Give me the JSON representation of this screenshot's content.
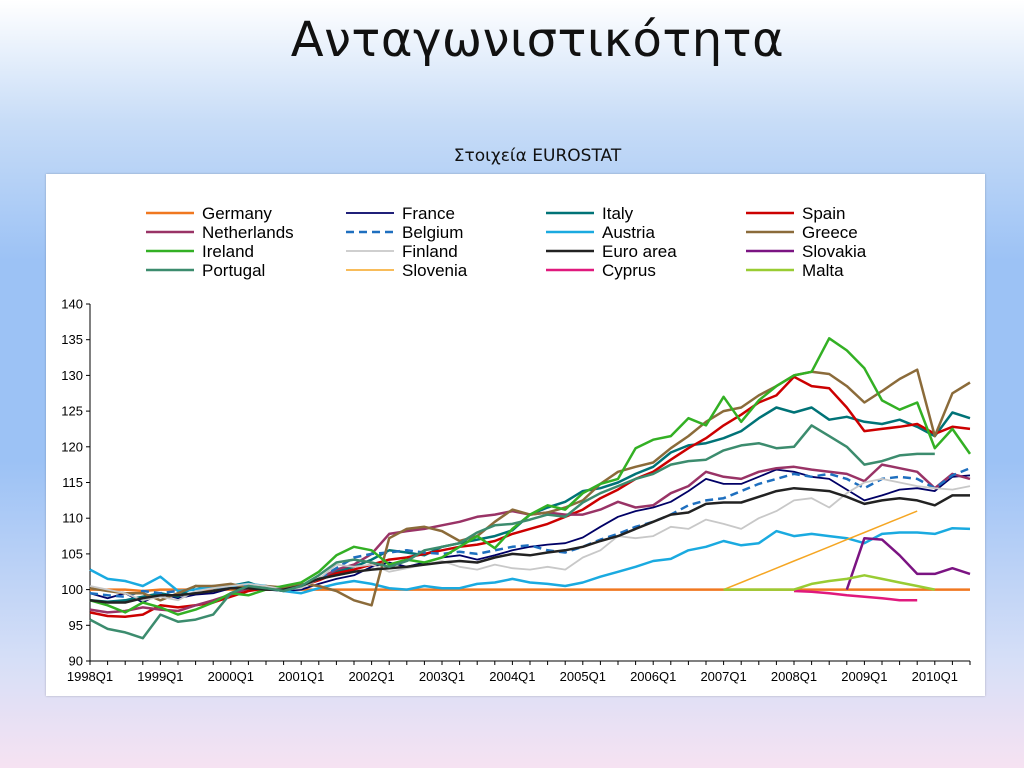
{
  "slide": {
    "title": "Ανταγωνιστικότητα"
  },
  "chart_data": {
    "type": "line",
    "title": "Στοιχεία EUROSTAT",
    "xlabel": "",
    "ylabel": "",
    "ylim": [
      90,
      140
    ],
    "yticks": [
      90,
      95,
      100,
      105,
      110,
      115,
      120,
      125,
      130,
      135,
      140
    ],
    "xlim": [
      0,
      50
    ],
    "xtick_positions": [
      0,
      4,
      8,
      12,
      16,
      20,
      24,
      28,
      32,
      36,
      40,
      44,
      48
    ],
    "xtick_labels": [
      "1998Q1",
      "1999Q1",
      "2000Q1",
      "2001Q1",
      "2002Q1",
      "2003Q1",
      "2004Q1",
      "2005Q1",
      "2006Q1",
      "2007Q1",
      "2008Q1",
      "2009Q1",
      "2010Q1"
    ],
    "grid": false,
    "legend_position": "top",
    "series": [
      {
        "name": "Germany",
        "color": "#F07820",
        "width": 2.5,
        "dash": "",
        "start": 0,
        "values": [
          100,
          100,
          100,
          99.8,
          100,
          100,
          100,
          100,
          100,
          100,
          100,
          100,
          100,
          100,
          100,
          100,
          100,
          100,
          100,
          100,
          100,
          100,
          100,
          100,
          100,
          100,
          100,
          100,
          100,
          100,
          100,
          100,
          100,
          100,
          100,
          100,
          100,
          100,
          100,
          100,
          100,
          100,
          100,
          100,
          100,
          100,
          100,
          100,
          100,
          100,
          100
        ]
      },
      {
        "name": "France",
        "color": "#000066",
        "width": 1.8,
        "dash": "",
        "start": 0,
        "values": [
          99.5,
          98.8,
          99.5,
          98.2,
          99.5,
          98.8,
          99.3,
          99.5,
          100.2,
          100.5,
          100,
          99.8,
          100,
          100.8,
          101.5,
          102,
          103.2,
          103.8,
          103.2,
          103.8,
          104.5,
          104.8,
          104.2,
          104.8,
          105.5,
          106,
          106.3,
          106.5,
          107.3,
          108.8,
          110.2,
          111,
          111.5,
          112.3,
          113.8,
          115.5,
          114.8,
          114.8,
          115.8,
          116.8,
          116.5,
          115.8,
          115.5,
          114,
          112.5,
          113.2,
          114,
          114.2,
          113.8,
          115.8,
          116
        ]
      },
      {
        "name": "Italy",
        "color": "#007377",
        "width": 2.5,
        "dash": "",
        "start": 0,
        "values": [
          98.5,
          98.3,
          98.5,
          99,
          99.5,
          99,
          100.5,
          100.2,
          100.5,
          101,
          100.2,
          99.8,
          100.5,
          101.5,
          102.5,
          103.2,
          104.2,
          105.5,
          105.2,
          104.8,
          106,
          106.5,
          107,
          107.5,
          108.3,
          110.5,
          111.5,
          112.3,
          113.8,
          114.2,
          115,
          116.2,
          117.2,
          119.2,
          120.2,
          120.5,
          121.2,
          122.2,
          124,
          125.5,
          124.8,
          125.5,
          123.8,
          124.2,
          123.5,
          123.2,
          123.8,
          122.8,
          121.5,
          124.8,
          124
        ]
      },
      {
        "name": "Spain",
        "color": "#CC0000",
        "width": 2.5,
        "dash": "",
        "start": 0,
        "values": [
          96.8,
          96.3,
          96.2,
          96.5,
          97.8,
          97.5,
          97.8,
          98.2,
          99,
          99.8,
          100.2,
          100,
          100.5,
          101.3,
          102.3,
          102.8,
          103.5,
          104.2,
          104.5,
          105,
          105.5,
          106,
          106.3,
          106.8,
          107.8,
          108.5,
          109.2,
          110.2,
          111.2,
          112.8,
          114,
          115.5,
          116.5,
          118.2,
          119.8,
          121.2,
          123,
          124.5,
          126.2,
          127.2,
          129.8,
          128.5,
          128.2,
          125.5,
          122.2,
          122.5,
          122.8,
          123.2,
          121.8,
          122.8,
          122.5
        ]
      },
      {
        "name": "Netherlands",
        "color": "#993366",
        "width": 2.5,
        "dash": "",
        "start": 0,
        "values": [
          97.2,
          96.8,
          97,
          97.5,
          97.2,
          97,
          97.8,
          98.5,
          99.3,
          100.2,
          100.3,
          100,
          100.5,
          101.5,
          102.8,
          103.5,
          105,
          107.8,
          108.2,
          108.5,
          109,
          109.5,
          110.2,
          110.5,
          111,
          110.5,
          110.8,
          110.5,
          110.5,
          111.2,
          112.3,
          111.5,
          111.8,
          113.5,
          114.5,
          116.5,
          115.8,
          115.5,
          116.5,
          117,
          117.2,
          116.8,
          116.5,
          116.2,
          115.2,
          117.5,
          117,
          116.5,
          114.2,
          116.2,
          115.5
        ]
      },
      {
        "name": "Belgium",
        "color": "#1E6FBF",
        "width": 2.5,
        "dash": "8,5",
        "start": 0,
        "values": [
          99.5,
          99.2,
          99,
          99.8,
          99.5,
          99.8,
          100,
          100.2,
          100.2,
          100.5,
          100.3,
          100,
          100.5,
          101.5,
          103,
          104.5,
          105,
          105.2,
          105.5,
          105.2,
          105,
          105.3,
          105,
          105.5,
          106,
          106.2,
          105.5,
          105.2,
          106,
          107,
          107.8,
          108.8,
          109.5,
          110.5,
          111.8,
          112.5,
          112.8,
          113.8,
          114.8,
          115.5,
          116.2,
          115.8,
          116.2,
          115.5,
          114.2,
          115.5,
          115.8,
          115.5,
          114.2,
          116,
          117
        ]
      },
      {
        "name": "Austria",
        "color": "#1AAAE0",
        "width": 2.5,
        "dash": "",
        "start": 0,
        "values": [
          102.8,
          101.5,
          101.2,
          100.5,
          101.8,
          99.8,
          100,
          100.5,
          100.5,
          100.8,
          100.5,
          99.8,
          99.5,
          100.2,
          100.8,
          101.2,
          100.8,
          100.2,
          100,
          100.5,
          100.2,
          100.2,
          100.8,
          101,
          101.5,
          101,
          100.8,
          100.5,
          101,
          101.8,
          102.5,
          103.2,
          104,
          104.3,
          105.5,
          106,
          106.8,
          106.2,
          106.5,
          108.2,
          107.5,
          107.8,
          107.5,
          107.2,
          106.5,
          107.8,
          108,
          108,
          107.8,
          108.6,
          108.5
        ]
      },
      {
        "name": "Greece",
        "color": "#8B6B3A",
        "width": 2.5,
        "dash": "",
        "start": 0,
        "values": [
          100.2,
          99.8,
          99.5,
          99.5,
          98.5,
          99.5,
          100.5,
          100.5,
          100.8,
          100.2,
          100.5,
          100.3,
          100.8,
          100.5,
          99.8,
          98.5,
          97.8,
          107.2,
          108.5,
          108.8,
          108.2,
          106.8,
          107.5,
          109.5,
          111.2,
          110.5,
          110.8,
          111.5,
          112.5,
          114.8,
          116.5,
          117.2,
          117.8,
          119.8,
          121.5,
          123.5,
          125,
          125.5,
          127.2,
          128.5,
          130,
          130.5,
          130.2,
          128.5,
          126.2,
          127.8,
          129.5,
          130.8,
          121.5,
          127.5,
          129
        ]
      },
      {
        "name": "Ireland",
        "color": "#33B024",
        "width": 2.5,
        "dash": "",
        "start": 0,
        "values": [
          98.5,
          97.8,
          96.8,
          98.2,
          97.5,
          96.5,
          97.2,
          98.2,
          99.5,
          99.2,
          100,
          100.5,
          101,
          102.5,
          104.8,
          106,
          105.5,
          103.5,
          104.2,
          103.8,
          104.5,
          106,
          107.5,
          105.8,
          108.5,
          110.5,
          111.8,
          111.2,
          113.5,
          114.8,
          115.5,
          119.8,
          121,
          121.5,
          124,
          123,
          127,
          123.5,
          126.5,
          128.5,
          130,
          130.5,
          135.2,
          133.5,
          131,
          126.5,
          125.2,
          126.2,
          119.8,
          122.5,
          119
        ]
      },
      {
        "name": "Finland",
        "color": "#C8C8C8",
        "width": 1.8,
        "dash": "",
        "start": 0,
        "values": [
          100.5,
          100,
          99.5,
          98.5,
          99,
          98.5,
          99.8,
          100.2,
          100.5,
          100.8,
          100.5,
          100,
          100.2,
          101.5,
          103.5,
          103.2,
          103.5,
          102.5,
          103,
          103.5,
          104,
          103.2,
          102.8,
          103.5,
          103,
          102.8,
          103.2,
          102.8,
          104.5,
          105.5,
          107.5,
          107.2,
          107.5,
          108.8,
          108.5,
          109.8,
          109.2,
          108.5,
          110,
          111,
          112.5,
          112.8,
          111.5,
          113.5,
          115,
          115.5,
          115,
          114.5,
          114.2,
          114,
          114.5
        ]
      },
      {
        "name": "Euro area",
        "color": "#222222",
        "width": 2.5,
        "dash": "",
        "start": 0,
        "values": [
          98.5,
          98.2,
          98.2,
          98.8,
          99.2,
          99.2,
          99.5,
          99.8,
          100.2,
          100.2,
          100,
          100,
          100.5,
          101.5,
          102,
          102.5,
          102.8,
          103,
          103.2,
          103.5,
          103.8,
          104,
          103.8,
          104.5,
          105,
          104.8,
          105.2,
          105.5,
          106,
          106.8,
          107.5,
          108.5,
          109.5,
          110.5,
          110.8,
          112,
          112.2,
          112.2,
          113,
          113.8,
          114.2,
          114,
          113.8,
          113,
          112,
          112.5,
          112.8,
          112.5,
          111.8,
          113.2,
          113.2
        ]
      },
      {
        "name": "Slovakia",
        "color": "#7B1482",
        "width": 2.5,
        "dash": "",
        "start": 43,
        "values": [
          100,
          107.2,
          107,
          104.8,
          102.2,
          102.2,
          103,
          102.2
        ]
      },
      {
        "name": "Portugal",
        "color": "#3C8C6E",
        "width": 2.5,
        "dash": "",
        "start": 0,
        "values": [
          95.8,
          94.5,
          94,
          93.2,
          96.5,
          95.5,
          95.8,
          96.5,
          99.5,
          100.5,
          100.2,
          99.8,
          100.5,
          102,
          103.8,
          104.2,
          103.8,
          103.2,
          104,
          105.5,
          106,
          106.5,
          108,
          109,
          109.2,
          109.8,
          110.5,
          110.2,
          112.2,
          113.5,
          114.5,
          115.5,
          116.2,
          117.5,
          118,
          118.2,
          119.5,
          120.2,
          120.5,
          119.8,
          120,
          123,
          121.5,
          120,
          117.5,
          118,
          118.8,
          119,
          119
        ]
      },
      {
        "name": "Slovenia",
        "color": "#F5A623",
        "width": 1.5,
        "dash": "",
        "start": 36,
        "values": [
          100,
          101,
          102,
          103,
          104,
          105,
          106,
          107,
          108,
          109,
          110,
          111
        ]
      },
      {
        "name": "Cyprus",
        "color": "#E0197D",
        "width": 2.5,
        "dash": "",
        "start": 40,
        "values": [
          99.8,
          99.7,
          99.5,
          99.2,
          99,
          98.8,
          98.5,
          98.5
        ]
      },
      {
        "name": "Malta",
        "color": "#99CC33",
        "width": 2.5,
        "dash": "",
        "start": 36,
        "values": [
          100,
          100,
          100,
          100,
          100,
          100.8,
          101.2,
          101.5,
          102,
          101.5,
          101,
          100.5,
          100
        ]
      }
    ]
  }
}
